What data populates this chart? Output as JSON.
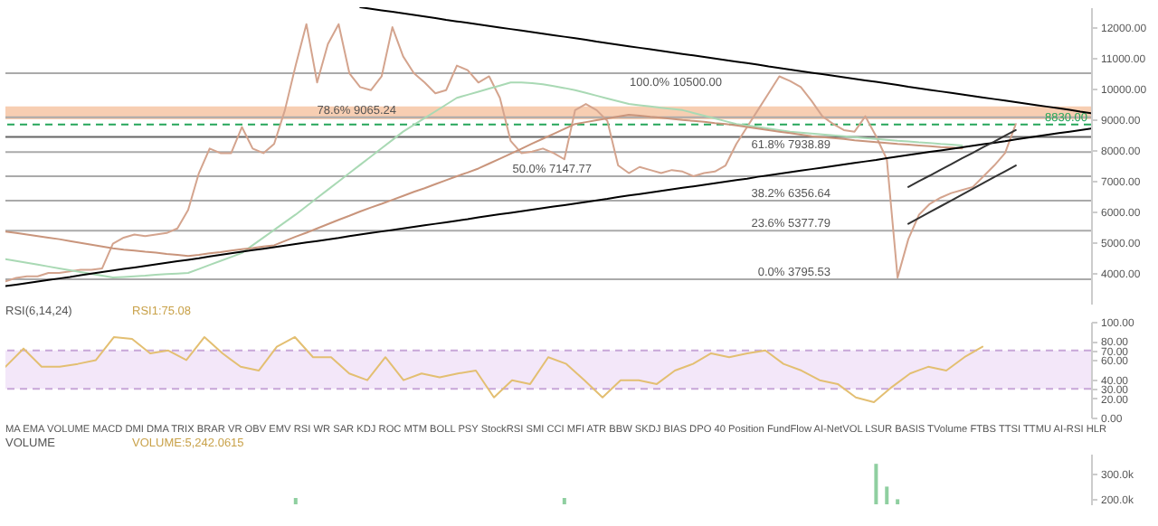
{
  "chart_data": [
    {
      "type": "line",
      "categories": [
        null,
        null,
        null,
        null,
        null,
        null,
        null,
        null,
        null,
        null,
        null,
        null,
        null,
        null,
        null,
        null,
        null,
        null,
        null,
        null,
        null,
        null,
        null,
        null,
        null,
        null,
        null,
        null,
        null,
        null,
        null,
        null,
        null,
        null,
        null,
        null,
        null,
        null,
        null,
        null,
        null,
        null,
        null,
        null,
        null,
        null,
        null,
        null,
        null,
        null,
        null,
        null,
        null,
        null,
        null,
        null,
        null,
        null,
        null,
        null,
        null,
        null,
        null,
        null,
        null,
        null,
        null,
        null,
        null,
        null,
        null,
        null,
        null,
        null,
        null,
        null,
        null,
        null,
        null,
        null,
        null,
        null,
        null,
        null,
        null,
        null,
        null,
        null,
        null,
        null,
        null,
        null,
        null,
        null,
        null,
        null,
        null,
        null,
        null,
        null,
        null,
        null
      ],
      "ylim": [
        3000,
        12650
      ],
      "yticks": [
        {
          "value": 4000,
          "label": "4000.00"
        },
        {
          "value": 5000,
          "label": "5000.00"
        },
        {
          "value": 6000,
          "label": "6000.00"
        },
        {
          "value": 7000,
          "label": "7000.00"
        },
        {
          "value": 8000,
          "label": "8000.00"
        },
        {
          "value": 9000,
          "label": "9000.00"
        },
        {
          "value": 10000,
          "label": "10000.00"
        },
        {
          "value": 11000,
          "label": "11000.00"
        },
        {
          "value": 12000,
          "label": "12000.00"
        }
      ],
      "tick_labels": "y",
      "series": [
        {
          "color": "#d4a48e",
          "values": [
            3730,
            3840,
            3890,
            3890,
            4000,
            4000,
            4050,
            4100,
            4100,
            4150,
            4950,
            5150,
            5250,
            5200,
            5250,
            5300,
            5450,
            6050,
            7250,
            8050,
            7900,
            7900,
            8750,
            8050,
            7900,
            8200,
            9300,
            10750,
            12100,
            10200,
            11450,
            12100,
            10500,
            10050,
            9950,
            10400,
            12000,
            11050,
            10500,
            10200,
            9850,
            9950,
            10750,
            10600,
            10200,
            10400,
            9700,
            8300,
            7900,
            7950,
            8050,
            7900,
            7700,
            9300,
            9500,
            9300,
            8950,
            7500,
            7250,
            7450,
            7350,
            7250,
            7350,
            7300,
            7150,
            7250,
            7300,
            7500,
            8200,
            8750,
            9300,
            9850,
            10400,
            10250,
            10050,
            9600,
            9100,
            8850,
            8650,
            8600,
            9100,
            8450,
            7700,
            3850,
            5100,
            5900,
            6250,
            6450,
            6600,
            6700,
            6800,
            7150,
            7500,
            7900,
            8850,
            null,
            null,
            null,
            null,
            null,
            null,
            null
          ]
        },
        {
          "color": "#a9d9b4",
          "values": [
            4450,
            4390,
            4330,
            4270,
            4210,
            4150,
            4090,
            4030,
            3970,
            3910,
            3850,
            3870,
            3890,
            3910,
            3940,
            3960,
            3980,
            4000,
            4130,
            4260,
            4390,
            4520,
            4650,
            4900,
            5150,
            5400,
            5650,
            5900,
            6170,
            6440,
            6710,
            6980,
            7250,
            7520,
            7790,
            8060,
            8330,
            8600,
            8820,
            9040,
            9260,
            9480,
            9700,
            9800,
            9900,
            10000,
            10100,
            10200,
            10200,
            10180,
            10140,
            10080,
            10020,
            9950,
            9860,
            9770,
            9680,
            9590,
            9500,
            9460,
            9420,
            9380,
            9340,
            9300,
            9210,
            9120,
            9030,
            8940,
            8850,
            8800,
            8750,
            8700,
            8650,
            8600,
            8570,
            8540,
            8510,
            8480,
            8450,
            8420,
            8390,
            8360,
            8330,
            8300,
            8280,
            8250,
            8230,
            8200,
            8180,
            8150,
            null,
            null,
            null,
            null,
            null,
            null,
            null,
            null,
            null,
            null,
            null,
            null
          ]
        },
        {
          "color": "#c9957c",
          "values": [
            5350,
            5300,
            5250,
            5200,
            5150,
            5100,
            5040,
            4980,
            4920,
            4860,
            4800,
            4760,
            4730,
            4690,
            4660,
            4620,
            4590,
            4550,
            4590,
            4640,
            4680,
            4730,
            4770,
            4810,
            4860,
            4900,
            5040,
            5180,
            5310,
            5450,
            5590,
            5730,
            5860,
            6000,
            6130,
            6250,
            6380,
            6510,
            6640,
            6760,
            6890,
            7020,
            7150,
            7270,
            7400,
            7560,
            7720,
            7880,
            8040,
            8210,
            8370,
            8530,
            8690,
            8850,
            8910,
            8970,
            9030,
            9090,
            9150,
            9120,
            9080,
            9050,
            9020,
            8980,
            8950,
            8920,
            8880,
            8850,
            8800,
            8750,
            8700,
            8650,
            8600,
            8550,
            8500,
            8450,
            8420,
            8390,
            8360,
            8320,
            8290,
            8260,
            8230,
            8200,
            8180,
            8150,
            8130,
            8100,
            8080,
            8050,
            null,
            null,
            null,
            null,
            null,
            null,
            null,
            null,
            null,
            null,
            null,
            null
          ]
        },
        {
          "color": "#000000",
          "values": [
            null,
            null,
            null,
            null,
            null,
            null,
            null,
            null,
            null,
            null,
            null,
            null,
            null,
            null,
            null,
            null,
            null,
            null,
            null,
            null,
            null,
            null,
            null,
            null,
            null,
            null,
            null,
            null,
            null,
            null,
            null,
            null,
            null,
            12650,
            12600,
            12550,
            12500,
            12450,
            12400,
            12350,
            12300,
            12240,
            12190,
            12140,
            12090,
            12040,
            11990,
            11940,
            11890,
            11840,
            11790,
            11740,
            11690,
            11640,
            11590,
            11530,
            11480,
            11430,
            11380,
            11330,
            11280,
            11230,
            11180,
            11130,
            11080,
            11030,
            10980,
            10930,
            10880,
            10830,
            10780,
            10720,
            10670,
            10620,
            10570,
            10520,
            10470,
            10420,
            10370,
            10320,
            10270,
            10220,
            10170,
            10120,
            10060,
            10010,
            9960,
            9910,
            9860,
            9810,
            9760,
            9710,
            9660,
            9610,
            9560,
            9510,
            9460,
            9410,
            9360,
            9310,
            9250,
            9200
          ]
        },
        {
          "color": "#000000",
          "values": [
            3570,
            3620,
            3670,
            3720,
            3770,
            3820,
            3870,
            3930,
            3980,
            4030,
            4080,
            4130,
            4180,
            4230,
            4280,
            4330,
            4380,
            4430,
            4480,
            4540,
            4590,
            4640,
            4690,
            4740,
            4790,
            4840,
            4890,
            4940,
            4990,
            5040,
            5090,
            5140,
            5200,
            5250,
            5300,
            5350,
            5400,
            5450,
            5500,
            5550,
            5600,
            5650,
            5700,
            5750,
            5810,
            5860,
            5910,
            5960,
            6010,
            6060,
            6110,
            6160,
            6210,
            6260,
            6310,
            6360,
            6410,
            6470,
            6520,
            6570,
            6620,
            6670,
            6720,
            6770,
            6820,
            6870,
            6920,
            6970,
            7020,
            7070,
            7130,
            7180,
            7230,
            7280,
            7330,
            7380,
            7430,
            7480,
            7530,
            7580,
            7630,
            7680,
            7740,
            7790,
            7840,
            7890,
            7940,
            7990,
            8040,
            8090,
            8140,
            8190,
            8240,
            8290,
            8350,
            8400,
            8450,
            8500,
            8550,
            8600,
            8650,
            8700
          ]
        },
        {
          "color": "#333333",
          "values": [
            null,
            null,
            null,
            null,
            null,
            null,
            null,
            null,
            null,
            null,
            null,
            null,
            null,
            null,
            null,
            null,
            null,
            null,
            null,
            null,
            null,
            null,
            null,
            null,
            null,
            null,
            null,
            null,
            null,
            null,
            null,
            null,
            null,
            null,
            null,
            null,
            null,
            null,
            null,
            null,
            null,
            null,
            null,
            null,
            null,
            null,
            null,
            null,
            null,
            null,
            null,
            null,
            null,
            null,
            null,
            null,
            null,
            null,
            null,
            null,
            null,
            null,
            null,
            null,
            null,
            null,
            null,
            null,
            null,
            null,
            null,
            null,
            null,
            null,
            null,
            null,
            null,
            null,
            null,
            null,
            null,
            null,
            null,
            null,
            6800,
            6990,
            7170,
            7360,
            7540,
            7730,
            7910,
            8100,
            8280,
            8470,
            8650,
            null,
            null,
            null,
            null,
            null,
            null,
            null
          ]
        },
        {
          "color": "#333333",
          "values": [
            null,
            null,
            null,
            null,
            null,
            null,
            null,
            null,
            null,
            null,
            null,
            null,
            null,
            null,
            null,
            null,
            null,
            null,
            null,
            null,
            null,
            null,
            null,
            null,
            null,
            null,
            null,
            null,
            null,
            null,
            null,
            null,
            null,
            null,
            null,
            null,
            null,
            null,
            null,
            null,
            null,
            null,
            null,
            null,
            null,
            null,
            null,
            null,
            null,
            null,
            null,
            null,
            null,
            null,
            null,
            null,
            null,
            null,
            null,
            null,
            null,
            null,
            null,
            null,
            null,
            null,
            null,
            null,
            null,
            null,
            null,
            null,
            null,
            null,
            null,
            null,
            null,
            null,
            null,
            null,
            null,
            null,
            null,
            null,
            5600,
            5790,
            5980,
            6170,
            6360,
            6550,
            6740,
            6930,
            7120,
            7310,
            7500,
            null,
            null,
            null,
            null,
            null,
            null,
            null
          ]
        }
      ],
      "bands": [
        {
          "axis": "y",
          "from": 9000,
          "to": 9420,
          "color": "#f6c6a4"
        }
      ],
      "ref_lines": [
        {
          "axis": "y",
          "value": 10500,
          "label": "100.0% 10500.00",
          "color": "#aaaaaa"
        },
        {
          "axis": "y",
          "value": 9065.24,
          "label": "78.6% 9065.24",
          "color": "#aaaaaa"
        },
        {
          "axis": "y",
          "value": 7938.89,
          "label": "61.8% 7938.89",
          "color": "#aaaaaa"
        },
        {
          "axis": "y",
          "value": 7147.77,
          "label": "50.0% 7147.77",
          "color": "#aaaaaa"
        },
        {
          "axis": "y",
          "value": 6356.64,
          "label": "38.2% 6356.64",
          "color": "#aaaaaa"
        },
        {
          "axis": "y",
          "value": 5377.79,
          "label": "23.6% 5377.79",
          "color": "#aaaaaa"
        },
        {
          "axis": "y",
          "value": 3795.53,
          "label": "0.0% 3795.53",
          "color": "#aaaaaa"
        },
        {
          "axis": "y",
          "value": 8430,
          "color": "#666666"
        },
        {
          "axis": "y",
          "value": 8830,
          "label": "8830.00",
          "color": "#26a65b",
          "line_style": "dashed"
        }
      ]
    },
    {
      "type": "line",
      "title": "RSI(6,14,24)",
      "categories": [
        null,
        null,
        null,
        null,
        null,
        null,
        null,
        null,
        null,
        null,
        null,
        null,
        null,
        null,
        null,
        null,
        null,
        null,
        null,
        null,
        null,
        null,
        null,
        null,
        null,
        null,
        null,
        null,
        null,
        null,
        null,
        null,
        null,
        null,
        null,
        null,
        null,
        null,
        null,
        null,
        null,
        null,
        null,
        null,
        null,
        null,
        null,
        null,
        null,
        null,
        null,
        null,
        null,
        null,
        null,
        null,
        null,
        null,
        null,
        null,
        null
      ],
      "ylim": [
        0,
        100
      ],
      "yticks": [
        {
          "value": 0,
          "label": "0.00"
        },
        {
          "value": 20,
          "label": "20.00"
        },
        {
          "value": 30,
          "label": "30.00"
        },
        {
          "value": 40,
          "label": "40.00"
        },
        {
          "value": 60,
          "label": "60.00"
        },
        {
          "value": 70,
          "label": "70.00"
        },
        {
          "value": 80,
          "label": "80.00"
        },
        {
          "value": 100,
          "label": "100.00"
        }
      ],
      "tick_labels": "y",
      "series": [
        {
          "color": "#e3bf72",
          "values": [
            53,
            72,
            53,
            53,
            56,
            60,
            84,
            82,
            67,
            70,
            60,
            84,
            67,
            53,
            49,
            74,
            84,
            63,
            63,
            46,
            39,
            63,
            39,
            46,
            42,
            46,
            49,
            21,
            39,
            35,
            63,
            56,
            39,
            21,
            39,
            39,
            35,
            49,
            56,
            67,
            63,
            67,
            70,
            56,
            49,
            39,
            35,
            21,
            16,
            32,
            46,
            53,
            49,
            63,
            74,
            null,
            null,
            null,
            null,
            null,
            null
          ]
        }
      ],
      "bands": [
        {
          "axis": "y",
          "from": 30,
          "to": 70,
          "color": "#f1e3f8"
        }
      ],
      "ref_lines": [
        {
          "axis": "y",
          "value": 30,
          "color": "#c7a6d8",
          "line_style": "dashed"
        },
        {
          "axis": "y",
          "value": 70,
          "color": "#c7a6d8",
          "line_style": "dashed"
        }
      ],
      "annotations": [
        "RSI1:75.08",
        "MA EMA VOLUME MACD DMI DMA TRIX BRAR VR OBV EMV RSI WR SAR KDJ ROC MTM BOLL PSY StockRSI SMI CCI MFI ATR BBW SKDJ BIAS DPO 40 Position FundFlow AI-NetVOL LSUR BASIS TVolume FTBS TTSI TTMU AI-RSI HLR"
      ]
    },
    {
      "type": "bar",
      "title": "VOLUME",
      "categories": [
        null,
        null,
        null,
        null,
        null,
        null,
        null,
        null,
        null,
        null,
        null,
        null,
        null,
        null,
        null,
        null,
        null,
        null,
        null,
        null,
        null,
        null,
        null,
        null,
        null,
        null,
        null,
        null,
        null,
        null,
        null,
        null,
        null,
        null,
        null,
        null,
        null,
        null,
        null,
        null,
        null,
        null,
        null,
        null,
        null,
        null,
        null,
        null,
        null,
        null,
        null,
        null,
        null,
        null,
        null,
        null,
        null,
        null,
        null,
        null,
        null,
        null,
        null,
        null,
        null,
        null,
        null,
        null,
        null,
        null,
        null,
        null,
        null,
        null,
        null,
        null,
        null,
        null,
        null,
        null,
        null,
        null,
        null,
        null,
        null,
        null,
        null,
        null,
        null,
        null,
        null,
        null,
        null,
        null,
        null,
        null,
        null,
        null,
        null,
        null,
        null,
        null
      ],
      "ylim": [
        180000,
        380000
      ],
      "yticks": [
        {
          "value": 200000,
          "label": "200.0k"
        },
        {
          "value": 300000,
          "label": "300.0k"
        }
      ],
      "tick_labels": "y",
      "series": [
        {
          "color": "#8fcfa0",
          "values": [
            null,
            null,
            null,
            null,
            null,
            null,
            null,
            null,
            null,
            null,
            null,
            null,
            null,
            null,
            null,
            null,
            null,
            null,
            null,
            null,
            null,
            null,
            null,
            null,
            null,
            null,
            null,
            205000,
            null,
            null,
            null,
            null,
            null,
            null,
            null,
            null,
            null,
            null,
            null,
            null,
            null,
            null,
            null,
            null,
            null,
            null,
            null,
            null,
            null,
            null,
            null,
            null,
            205000,
            null,
            null,
            null,
            null,
            null,
            null,
            null,
            null,
            null,
            null,
            null,
            null,
            null,
            null,
            null,
            null,
            null,
            null,
            null,
            null,
            null,
            null,
            null,
            null,
            null,
            null,
            null,
            null,
            340000,
            250000,
            200000,
            null,
            null,
            null,
            null,
            null,
            null,
            null,
            null,
            null,
            null,
            null,
            null,
            null,
            null,
            null,
            null,
            null,
            null
          ]
        }
      ],
      "annotations": [
        "VOLUME:5,242.0615"
      ]
    }
  ]
}
